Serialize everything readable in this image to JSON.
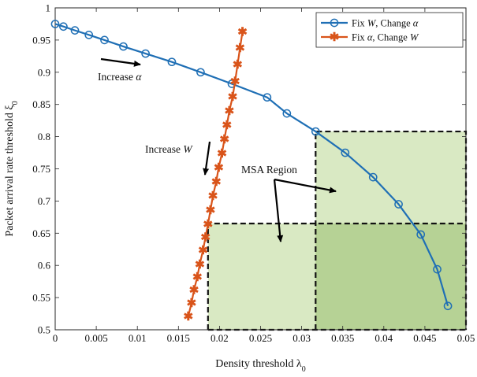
{
  "chart_data": {
    "type": "line",
    "xlabel": "Density threshold λ",
    "xlabel_sub": "0",
    "ylabel": "Packet arrival rate threshold ξ",
    "ylabel_sub": "0",
    "xlim": [
      0,
      0.05
    ],
    "ylim": [
      0.5,
      1.0
    ],
    "xticks": [
      0,
      0.005,
      0.01,
      0.015,
      0.02,
      0.025,
      0.03,
      0.035,
      0.04,
      0.045,
      0.05
    ],
    "xtick_labels": [
      "0",
      "0.005",
      "0.01",
      "0.015",
      "0.02",
      "0.025",
      "0.03",
      "0.035",
      "0.04",
      "0.045",
      "0.05"
    ],
    "yticks": [
      0.5,
      0.55,
      0.6,
      0.65,
      0.7,
      0.75,
      0.8,
      0.85,
      0.9,
      0.95,
      1.0
    ],
    "ytick_labels": [
      "0.5",
      "0.55",
      "0.6",
      "0.65",
      "0.7",
      "0.75",
      "0.8",
      "0.85",
      "0.9",
      "0.95",
      "1"
    ],
    "grid": false,
    "legend_position": "top-right",
    "series": [
      {
        "name_parts": [
          "Fix ",
          "W",
          ", Change ",
          "α"
        ],
        "color": "#1f6fb5",
        "marker": "circle",
        "x": [
          0.0,
          0.001,
          0.0024,
          0.0041,
          0.006,
          0.0083,
          0.011,
          0.0142,
          0.0177,
          0.0215,
          0.0258,
          0.0282,
          0.0317,
          0.0353,
          0.0387,
          0.0418,
          0.0445,
          0.0465,
          0.0478
        ],
        "y": [
          0.975,
          0.971,
          0.965,
          0.958,
          0.95,
          0.94,
          0.929,
          0.916,
          0.9,
          0.882,
          0.861,
          0.836,
          0.808,
          0.775,
          0.737,
          0.695,
          0.648,
          0.594,
          0.537
        ]
      },
      {
        "name_parts": [
          "Fix ",
          "α",
          ", Change ",
          "W"
        ],
        "color": "#d9541a",
        "marker": "asterisk",
        "x": [
          0.0162,
          0.0166,
          0.0169,
          0.0173,
          0.0176,
          0.018,
          0.0183,
          0.0186,
          0.0189,
          0.0192,
          0.0196,
          0.0199,
          0.0203,
          0.0206,
          0.0209,
          0.0212,
          0.0216,
          0.0219,
          0.0222,
          0.0225,
          0.0228
        ],
        "y": [
          0.521,
          0.542,
          0.562,
          0.582,
          0.602,
          0.624,
          0.644,
          0.664,
          0.686,
          0.708,
          0.73,
          0.752,
          0.774,
          0.796,
          0.818,
          0.84,
          0.862,
          0.886,
          0.912,
          0.938,
          0.963
        ]
      }
    ],
    "regions": [
      {
        "x0": 0.0317,
        "x1": 0.05,
        "y0": 0.5,
        "y1": 0.808,
        "color": "#cfe3b4"
      },
      {
        "x0": 0.0186,
        "x1": 0.05,
        "y0": 0.5,
        "y1": 0.665,
        "color": "#cfe3b4"
      }
    ],
    "annotations": {
      "increase_alpha": {
        "text": "Increase ",
        "symbol": "α"
      },
      "increase_w": {
        "text": "Increase ",
        "symbol": "W"
      },
      "msa_region": {
        "text": "MSA Region"
      }
    }
  }
}
